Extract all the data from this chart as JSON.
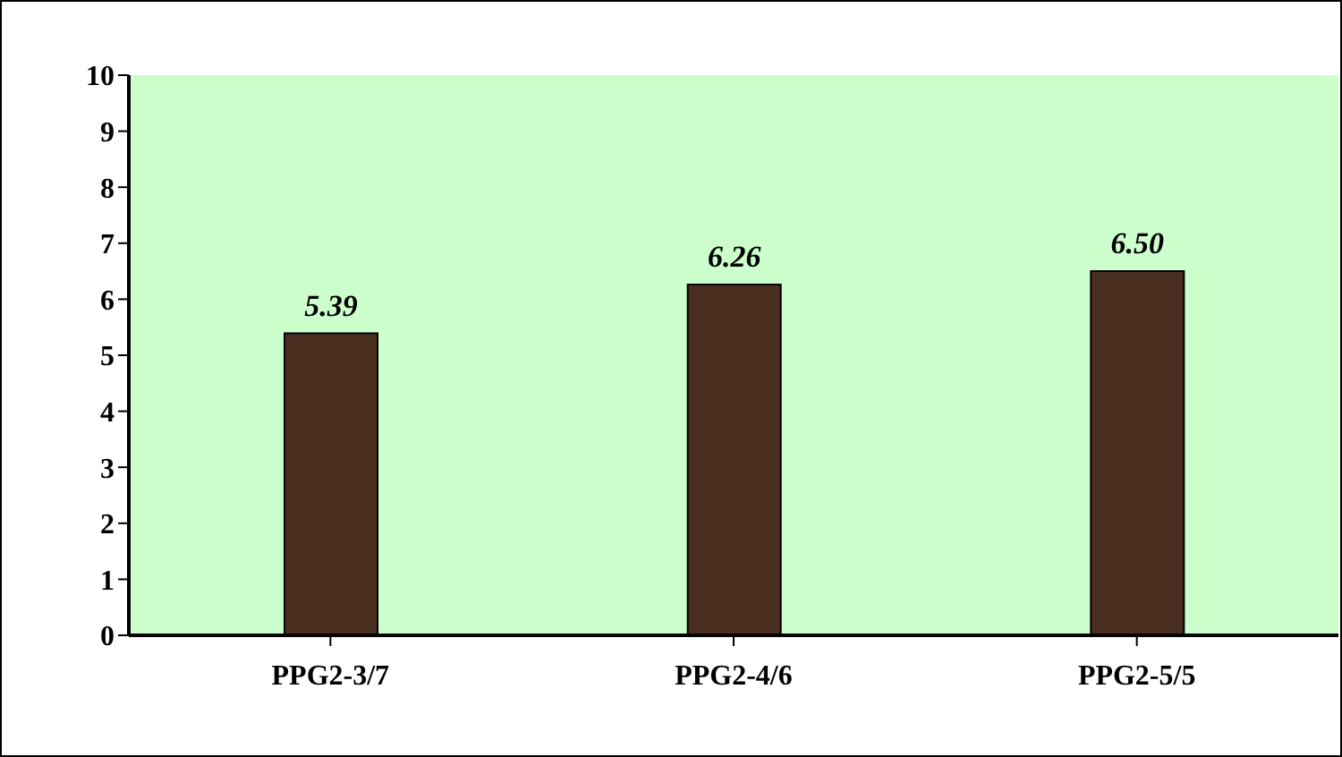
{
  "chart_data": {
    "type": "bar",
    "categories": [
      "PPG2-3/7",
      "PPG2-4/6",
      "PPG2-5/5"
    ],
    "values": [
      5.39,
      6.26,
      6.5
    ],
    "value_labels": [
      "5.39",
      "6.26",
      "6.50"
    ],
    "color": "#4a2e1f",
    "ylim": [
      0,
      10
    ],
    "yticks": [
      0,
      1,
      2,
      3,
      4,
      5,
      6,
      7,
      8,
      9,
      10
    ],
    "grid": false
  }
}
